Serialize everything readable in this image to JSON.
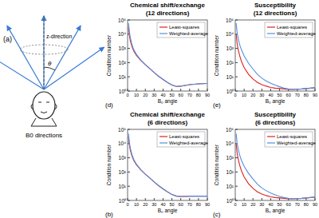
{
  "diagram": {
    "label": "(a)",
    "z_label": "z-direction",
    "angle_label": "θ",
    "caption": "B0 directions"
  },
  "chart_data": [
    {
      "type": "line",
      "title": "Chemical shift/exchange",
      "subtitle": "(12 directions)",
      "annotations": [
        "(d)"
      ],
      "x_label": "B₀ angle",
      "y_label": "Condition number",
      "log": "y",
      "legend": "top-right",
      "grid": false,
      "x": [
        1,
        2,
        3,
        5,
        7,
        10,
        15,
        20,
        25,
        30,
        35,
        40,
        45,
        50,
        55,
        60,
        65,
        70,
        75,
        80,
        85,
        90
      ],
      "xlim": [
        0,
        90
      ],
      "xticks": [
        0,
        10,
        20,
        30,
        40,
        50,
        60,
        70,
        80,
        90
      ],
      "ylim": [
        1,
        100000
      ],
      "yticks": [
        {
          "value": 1,
          "label": "10⁰"
        },
        {
          "value": 10,
          "label": "10¹"
        },
        {
          "value": 100,
          "label": "10²"
        },
        {
          "value": 1000,
          "label": "10³"
        },
        {
          "value": 10000,
          "label": "10⁴"
        },
        {
          "value": 100000,
          "label": "10⁵"
        }
      ],
      "series": [
        {
          "name": "Least-squares",
          "color": "#e02020",
          "values": [
            30000,
            8000,
            3500,
            1300,
            650,
            320,
            140,
            70,
            38,
            20,
            11,
            6.5,
            4,
            2.6,
            2.1,
            2.2,
            2.5,
            2.8,
            3.0,
            3.2,
            3.3,
            3.4
          ]
        },
        {
          "name": "Weighted-average",
          "color": "#4f8fe0",
          "values": [
            60000,
            15000,
            6000,
            1800,
            800,
            380,
            150,
            72,
            38,
            20,
            11,
            6.5,
            4,
            2.7,
            2.1,
            2.2,
            2.5,
            2.8,
            3.0,
            3.2,
            3.3,
            3.4
          ]
        }
      ]
    },
    {
      "type": "line",
      "title": "Susceptibility",
      "subtitle": "(12 directions)",
      "annotations": [
        "(e)"
      ],
      "x_label": "B₀ angle",
      "y_label": "Condition number",
      "log": "y",
      "legend": "top-right",
      "grid": false,
      "x": [
        1,
        2,
        3,
        5,
        7,
        10,
        15,
        20,
        25,
        30,
        35,
        40,
        45,
        50,
        55,
        60,
        65,
        70,
        75,
        80,
        85,
        90
      ],
      "xlim": [
        0,
        90
      ],
      "xticks": [
        0,
        10,
        20,
        30,
        40,
        50,
        60,
        70,
        80,
        90
      ],
      "ylim": [
        1,
        100000
      ],
      "yticks": [
        {
          "value": 1,
          "label": "10⁰"
        },
        {
          "value": 10,
          "label": "10¹"
        },
        {
          "value": 100,
          "label": "10²"
        },
        {
          "value": 1000,
          "label": "10³"
        },
        {
          "value": 10000,
          "label": "10⁴"
        },
        {
          "value": 100000,
          "label": "10⁵"
        }
      ],
      "series": [
        {
          "name": "Least-squares",
          "color": "#e02020",
          "values": [
            10000,
            2500,
            1000,
            300,
            120,
            45,
            15,
            7,
            4,
            2.8,
            2.2,
            1.8,
            1.6,
            1.5,
            1.4,
            1.3,
            1.3,
            1.35,
            1.4,
            1.5,
            1.6,
            1.7
          ]
        },
        {
          "name": "Weighted-average",
          "color": "#4f8fe0",
          "values": [
            60000,
            15000,
            6000,
            1800,
            800,
            300,
            90,
            35,
            15,
            8,
            5,
            3.5,
            2.6,
            2.0,
            1.6,
            1.4,
            1.35,
            1.35,
            1.4,
            1.5,
            1.6,
            1.7
          ]
        }
      ]
    },
    {
      "type": "line",
      "title": "Chemical shift/exchange",
      "subtitle": "(6 directions)",
      "annotations": [
        "(b)"
      ],
      "x_label": "B₀ angle",
      "y_label": "Condition number",
      "log": "y",
      "legend": "top-right",
      "grid": false,
      "x": [
        1,
        2,
        3,
        5,
        7,
        10,
        15,
        20,
        25,
        30,
        35,
        40,
        45,
        50,
        55,
        60,
        65,
        70,
        75,
        80,
        85,
        90
      ],
      "xlim": [
        0,
        90
      ],
      "xticks": [
        0,
        10,
        20,
        30,
        40,
        50,
        60,
        70,
        80,
        90
      ],
      "ylim": [
        1,
        100000
      ],
      "yticks": [
        {
          "value": 1,
          "label": "10⁰"
        },
        {
          "value": 10,
          "label": "10¹"
        },
        {
          "value": 100,
          "label": "10²"
        },
        {
          "value": 1000,
          "label": "10³"
        },
        {
          "value": 10000,
          "label": "10⁴"
        },
        {
          "value": 100000,
          "label": "10⁵"
        }
      ],
      "series": [
        {
          "name": "Least-squares",
          "color": "#e02020",
          "values": [
            30000,
            8000,
            3500,
            1300,
            650,
            320,
            140,
            70,
            38,
            20,
            11,
            6.5,
            4,
            2.6,
            2.0,
            1.9,
            1.9,
            2.0,
            2.0,
            2.0,
            2.0,
            2.0
          ]
        },
        {
          "name": "Weighted-average",
          "color": "#4f8fe0",
          "values": [
            50000,
            12000,
            5000,
            1600,
            750,
            350,
            145,
            71,
            38,
            20,
            11,
            6.5,
            4,
            2.6,
            2.0,
            1.9,
            1.9,
            2.0,
            2.0,
            2.0,
            2.0,
            2.0
          ]
        }
      ]
    },
    {
      "type": "line",
      "title": "Susceptibility",
      "subtitle": "(6 directions)",
      "annotations": [
        "(c)"
      ],
      "x_label": "B₀ angle",
      "y_label": "Condition number",
      "log": "y",
      "legend": "top-right",
      "grid": false,
      "x": [
        1,
        2,
        3,
        5,
        7,
        10,
        15,
        20,
        25,
        30,
        35,
        40,
        45,
        50,
        55,
        60,
        65,
        70,
        75,
        80,
        85,
        90
      ],
      "xlim": [
        0,
        90
      ],
      "xticks": [
        0,
        10,
        20,
        30,
        40,
        50,
        60,
        70,
        80,
        90
      ],
      "ylim": [
        1,
        100000
      ],
      "yticks": [
        {
          "value": 1,
          "label": "10⁰"
        },
        {
          "value": 10,
          "label": "10¹"
        },
        {
          "value": 100,
          "label": "10²"
        },
        {
          "value": 1000,
          "label": "10³"
        },
        {
          "value": 10000,
          "label": "10⁴"
        },
        {
          "value": 100000,
          "label": "10⁵"
        }
      ],
      "series": [
        {
          "name": "Least-squares",
          "color": "#e02020",
          "values": [
            10000,
            2500,
            1000,
            300,
            120,
            45,
            15,
            7,
            4,
            2.8,
            2.2,
            1.8,
            1.6,
            1.5,
            1.4,
            1.3,
            1.3,
            1.35,
            1.4,
            1.5,
            1.6,
            1.7
          ]
        },
        {
          "name": "Weighted-average",
          "color": "#4f8fe0",
          "values": [
            50000,
            12000,
            5000,
            1500,
            650,
            250,
            80,
            32,
            14,
            7.5,
            4.8,
            3.3,
            2.5,
            1.9,
            1.6,
            1.4,
            1.35,
            1.35,
            1.4,
            1.5,
            1.6,
            1.7
          ]
        }
      ]
    }
  ]
}
